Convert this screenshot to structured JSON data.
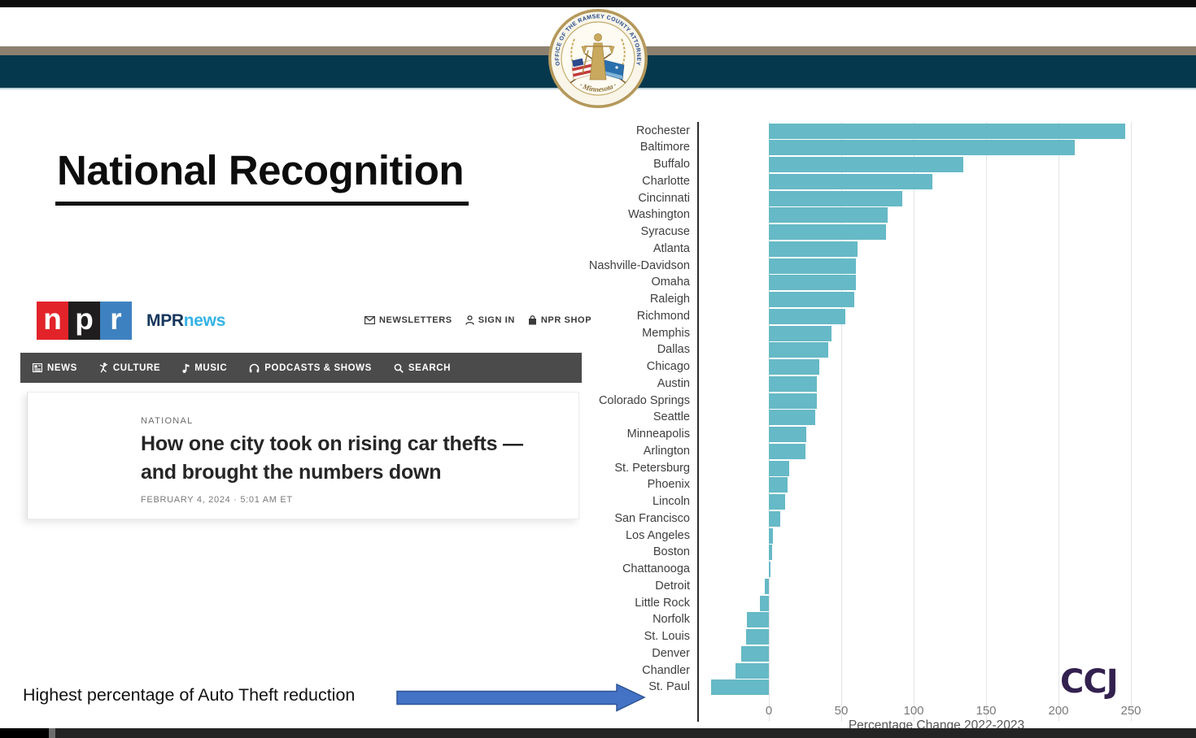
{
  "slide": {
    "title": "National Recognition"
  },
  "seal": {
    "top_text": "OFFICE OF THE RAMSEY COUNTY ATTORNEY",
    "bottom_text": "· Minnesota ·"
  },
  "npr": {
    "logo_letters": {
      "n": "n",
      "p": "p",
      "r": "r"
    },
    "brand": {
      "mpr": "MPR",
      "news": "news"
    },
    "header_menu": [
      {
        "label": "NEWSLETTERS",
        "icon": "envelope-icon"
      },
      {
        "label": "SIGN IN",
        "icon": "person-icon"
      },
      {
        "label": "NPR SHOP",
        "icon": "shopping-bag-icon"
      }
    ],
    "nav_items": [
      {
        "label": "NEWS",
        "icon": "newspaper-icon"
      },
      {
        "label": "CULTURE",
        "icon": "culture-dancer-icon"
      },
      {
        "label": "MUSIC",
        "icon": "music-note-icon"
      },
      {
        "label": "PODCASTS & SHOWS",
        "icon": "headphones-icon"
      },
      {
        "label": "SEARCH",
        "icon": "search-icon"
      }
    ],
    "article": {
      "kicker": "NATIONAL",
      "headline_line1": "How one city took on rising car thefts —",
      "headline_line2": "and brought the numbers down",
      "date": "FEBRUARY 4, 2024 · 5:01 AM ET"
    }
  },
  "annotation": {
    "text": "Highest percentage of Auto Theft reduction",
    "arrow_fill": "#4472c4",
    "arrow_stroke": "#2f5597"
  },
  "chart_data": {
    "type": "bar",
    "orientation": "horizontal",
    "title": "",
    "xlabel": "Percentage Change 2022-2023",
    "ylabel": "",
    "source_logo": "CCJ",
    "xticks": [
      0,
      50,
      100,
      150,
      200,
      250
    ],
    "xlim": [
      -47,
      278
    ],
    "grid": true,
    "bar_color": "#66b9c6",
    "categories": [
      "Rochester",
      "Baltimore",
      "Buffalo",
      "Charlotte",
      "Cincinnati",
      "Washington",
      "Syracuse",
      "Atlanta",
      "Nashville-Davidson",
      "Omaha",
      "Raleigh",
      "Richmond",
      "Memphis",
      "Dallas",
      "Chicago",
      "Austin",
      "Colorado Springs",
      "Seattle",
      "Minneapolis",
      "Arlington",
      "St. Petersburg",
      "Phoenix",
      "Lincoln",
      "San Francisco",
      "Los Angeles",
      "Boston",
      "Chattanooga",
      "Detroit",
      "Little Rock",
      "Norfolk",
      "St. Louis",
      "Denver",
      "Chandler",
      "St. Paul"
    ],
    "values": [
      246,
      211,
      134,
      113,
      92,
      82,
      81,
      61,
      60,
      60,
      59,
      53,
      43,
      41,
      35,
      33,
      33,
      32,
      26,
      25,
      14,
      13,
      11,
      8,
      3,
      2,
      1,
      -3,
      -6,
      -15,
      -16,
      -19,
      -23,
      -40
    ]
  },
  "colors": {
    "teal_band": "#06384d",
    "tan_stripe": "#8c8170",
    "bar_teal": "#66b9c6",
    "arrow_blue": "#4472c4",
    "ccj_purple": "#33214f",
    "npr_red": "#e2232a",
    "npr_blue": "#3e81c0",
    "mpr_navy": "#16365c",
    "mpr_cyan": "#34b3e4",
    "nav_gray": "#4b4b4b"
  }
}
